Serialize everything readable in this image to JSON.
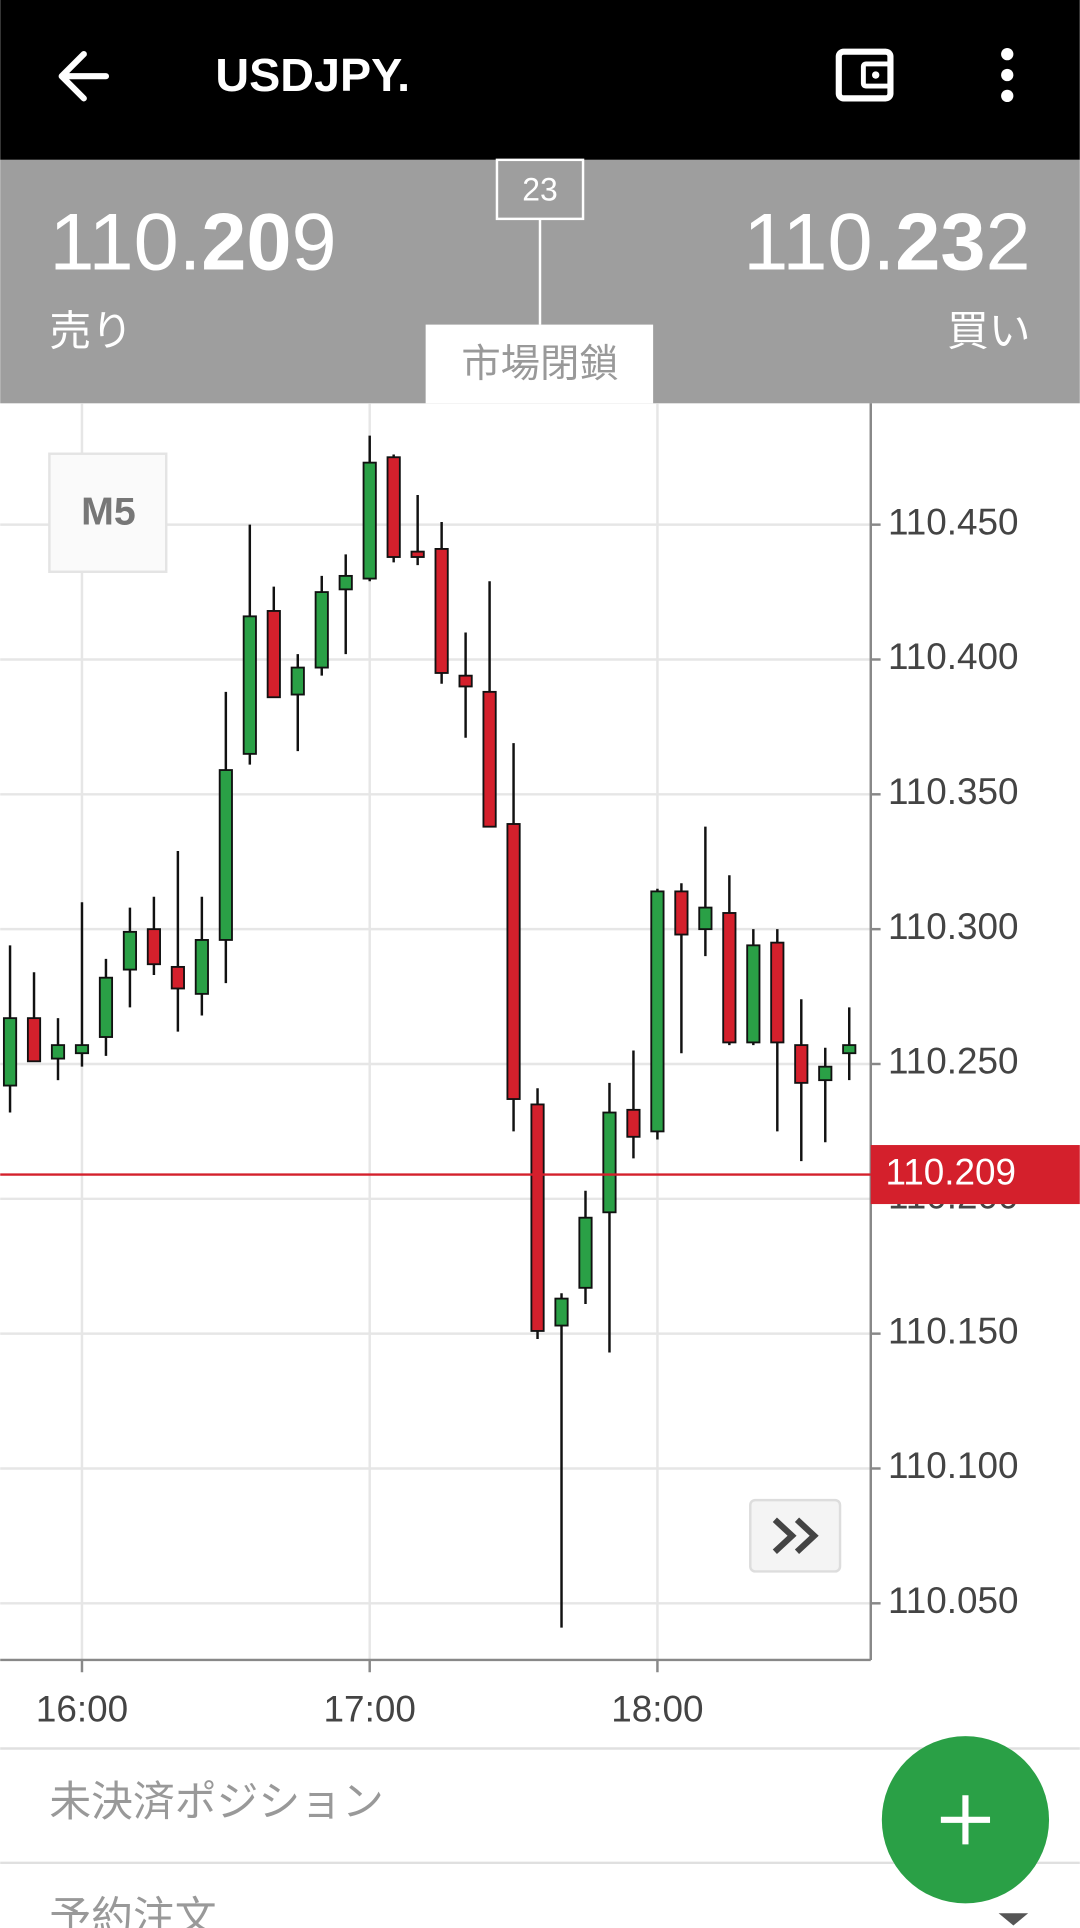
{
  "header": {
    "title": "USDJPY."
  },
  "quote": {
    "bid": {
      "parts": [
        "110.",
        "20",
        "9"
      ],
      "label": "売り"
    },
    "ask": {
      "parts": [
        "110.",
        "23",
        "2"
      ],
      "label": "買い"
    },
    "spread": 23,
    "status": "市場閉鎖"
  },
  "chart_data": {
    "type": "candlestick",
    "timeframe": "M5",
    "categories": [
      null,
      null,
      null,
      "16:00",
      null,
      null,
      null,
      null,
      null,
      null,
      null,
      null,
      null,
      null,
      null,
      "17:00",
      null,
      null,
      null,
      null,
      null,
      null,
      null,
      null,
      null,
      null,
      null,
      "18:00",
      null,
      null,
      null,
      null,
      null,
      null,
      null,
      null
    ],
    "open": [
      110.242,
      110.267,
      110.252,
      110.254,
      110.26,
      110.285,
      110.3,
      110.286,
      110.276,
      110.296,
      110.365,
      110.418,
      110.387,
      110.397,
      110.426,
      110.43,
      110.475,
      110.44,
      110.441,
      110.394,
      110.388,
      110.339,
      110.235,
      110.153,
      110.167,
      110.195,
      110.233,
      110.225,
      110.314,
      110.3,
      110.306,
      110.258,
      110.295,
      110.257,
      110.244,
      110.254
    ],
    "high": [
      110.294,
      110.284,
      110.267,
      110.31,
      110.289,
      110.308,
      110.312,
      110.329,
      110.312,
      110.388,
      110.45,
      110.427,
      110.402,
      110.431,
      110.439,
      110.483,
      110.476,
      110.461,
      110.451,
      110.41,
      110.429,
      110.369,
      110.241,
      110.165,
      110.203,
      110.243,
      110.255,
      110.315,
      110.317,
      110.338,
      110.32,
      110.3,
      110.3,
      110.274,
      110.256,
      110.271
    ],
    "low": [
      110.232,
      110.251,
      110.244,
      110.249,
      110.253,
      110.271,
      110.283,
      110.262,
      110.268,
      110.28,
      110.361,
      110.386,
      110.366,
      110.394,
      110.402,
      110.429,
      110.436,
      110.435,
      110.391,
      110.371,
      110.338,
      110.225,
      110.148,
      110.041,
      110.161,
      110.143,
      110.215,
      110.222,
      110.254,
      110.29,
      110.257,
      110.257,
      110.225,
      110.214,
      110.221,
      110.244
    ],
    "close": [
      110.267,
      110.251,
      110.257,
      110.257,
      110.282,
      110.299,
      110.287,
      110.278,
      110.296,
      110.359,
      110.416,
      110.386,
      110.397,
      110.425,
      110.431,
      110.473,
      110.438,
      110.438,
      110.395,
      110.39,
      110.338,
      110.237,
      110.151,
      110.163,
      110.193,
      110.232,
      110.223,
      110.314,
      110.298,
      110.308,
      110.258,
      110.294,
      110.258,
      110.243,
      110.249,
      110.257
    ],
    "up_color": "#2aa046",
    "down_color": "#d4202c",
    "ylim": [
      110.029,
      110.495
    ],
    "yticks": [
      {
        "value": 110.05,
        "label": "110.050"
      },
      {
        "value": 110.1,
        "label": "110.100"
      },
      {
        "value": 110.15,
        "label": "110.150"
      },
      {
        "value": 110.2,
        "label": "110.200"
      },
      {
        "value": 110.25,
        "label": "110.250"
      },
      {
        "value": 110.3,
        "label": "110.300"
      },
      {
        "value": 110.35,
        "label": "110.350"
      },
      {
        "value": 110.4,
        "label": "110.400"
      },
      {
        "value": 110.45,
        "label": "110.450"
      }
    ],
    "grid": true,
    "current_price": 110.209,
    "current_price_color": "#d4202c"
  },
  "tabs": [
    "未決済ポジション",
    "予約注文"
  ]
}
